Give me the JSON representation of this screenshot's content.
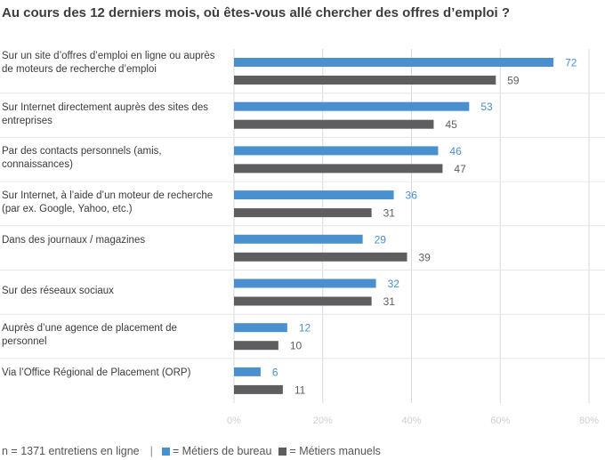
{
  "title": "Au cours des 12 derniers mois, où êtes-vous allé chercher des offres d’emploi ?",
  "footer": {
    "note": "n = 1371 entretiens en ligne",
    "separator": "|"
  },
  "colors": {
    "bureau": "#4a90cf",
    "manuels": "#5e5e60",
    "grid": "#d9d9d9",
    "axis_text": "#cfcfcf"
  },
  "chart_data": {
    "type": "bar",
    "orientation": "horizontal",
    "categories": [
      "Sur un site d’offres d’emploi en ligne ou auprès de moteurs de recherche d’emploi",
      "Sur Internet directement auprès des sites des entreprises",
      "Par des contacts personnels (amis, connaissances)",
      "Sur Internet, à l’aide d’un moteur de recherche (par ex. Google, Yahoo, etc.)",
      "Dans des journaux / magazines",
      "Sur des réseaux sociaux",
      "Auprès d’une agence de placement de personnel",
      "Via l’Office Régional de Placement (ORP)"
    ],
    "series": [
      {
        "name": "= Métiers de bureau",
        "color": "#4a90cf",
        "values": [
          72,
          53,
          46,
          36,
          29,
          32,
          12,
          6
        ]
      },
      {
        "name": "= Métiers manuels",
        "color": "#5e5e60",
        "values": [
          59,
          45,
          47,
          31,
          39,
          31,
          10,
          11
        ]
      }
    ],
    "x_ticks": [
      "0%",
      "20%",
      "40%",
      "60%",
      "80%"
    ],
    "xlim": [
      0,
      80
    ],
    "legend_position": "bottom",
    "grid": true
  }
}
